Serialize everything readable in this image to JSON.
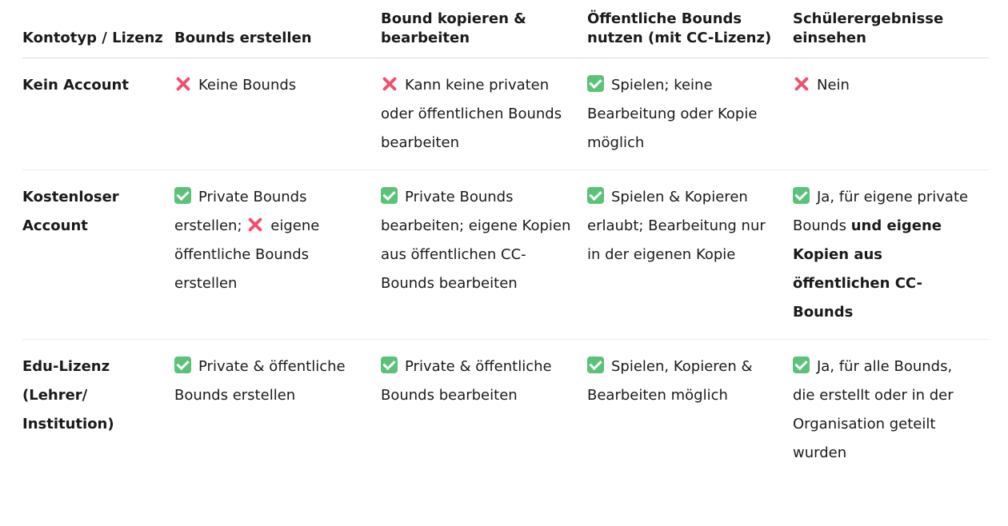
{
  "colors": {
    "check": "#5cc27a",
    "cross": "#f0506e"
  },
  "headers": [
    "Kontotyp / Lizenz",
    "Bounds erstellen",
    "Bound kopieren & bearbeiten",
    "Öffentliche Bounds nutzen (mit CC-Lizenz)",
    "Schülerergebnisse einsehen"
  ],
  "rows": [
    {
      "label": "Kein Account",
      "cells": [
        [
          {
            "icon": "cross"
          },
          {
            "text": "Keine Bounds"
          }
        ],
        [
          {
            "icon": "cross"
          },
          {
            "text": "Kann keine privaten oder öffentlichen Bounds bearbeiten"
          }
        ],
        [
          {
            "icon": "check"
          },
          {
            "text": "Spielen; keine Bearbeitung oder Kopie möglich"
          }
        ],
        [
          {
            "icon": "cross"
          },
          {
            "text": "Nein"
          }
        ]
      ]
    },
    {
      "label": "Kostenloser Account",
      "cells": [
        [
          {
            "icon": "check"
          },
          {
            "text": "Private Bounds erstellen; "
          },
          {
            "icon": "cross"
          },
          {
            "text": "eigene öffentliche Bounds erstellen"
          }
        ],
        [
          {
            "icon": "check"
          },
          {
            "text": "Private Bounds bearbeiten; eigene Kopien aus öffentlichen CC-Bounds bearbeiten"
          }
        ],
        [
          {
            "icon": "check"
          },
          {
            "text": "Spielen & Kopieren erlaubt; Bearbeitung nur in der eigenen Kopie"
          }
        ],
        [
          {
            "icon": "check"
          },
          {
            "text": "Ja, für eigene private Bounds "
          },
          {
            "text": "und eigene Kopien aus öffentlichen CC-Bounds",
            "bold": true
          }
        ]
      ]
    },
    {
      "label": "Edu-Lizenz (Lehrer/ Institution)",
      "cells": [
        [
          {
            "icon": "check"
          },
          {
            "text": "Private & öffentliche Bounds erstellen"
          }
        ],
        [
          {
            "icon": "check"
          },
          {
            "text": "Private & öffentliche Bounds bearbeiten"
          }
        ],
        [
          {
            "icon": "check"
          },
          {
            "text": "Spielen, Kopieren & Bearbeiten möglich"
          }
        ],
        [
          {
            "icon": "check"
          },
          {
            "text": "Ja, für alle Bounds, die erstellt oder in der Organisation geteilt wurden"
          }
        ]
      ]
    }
  ]
}
